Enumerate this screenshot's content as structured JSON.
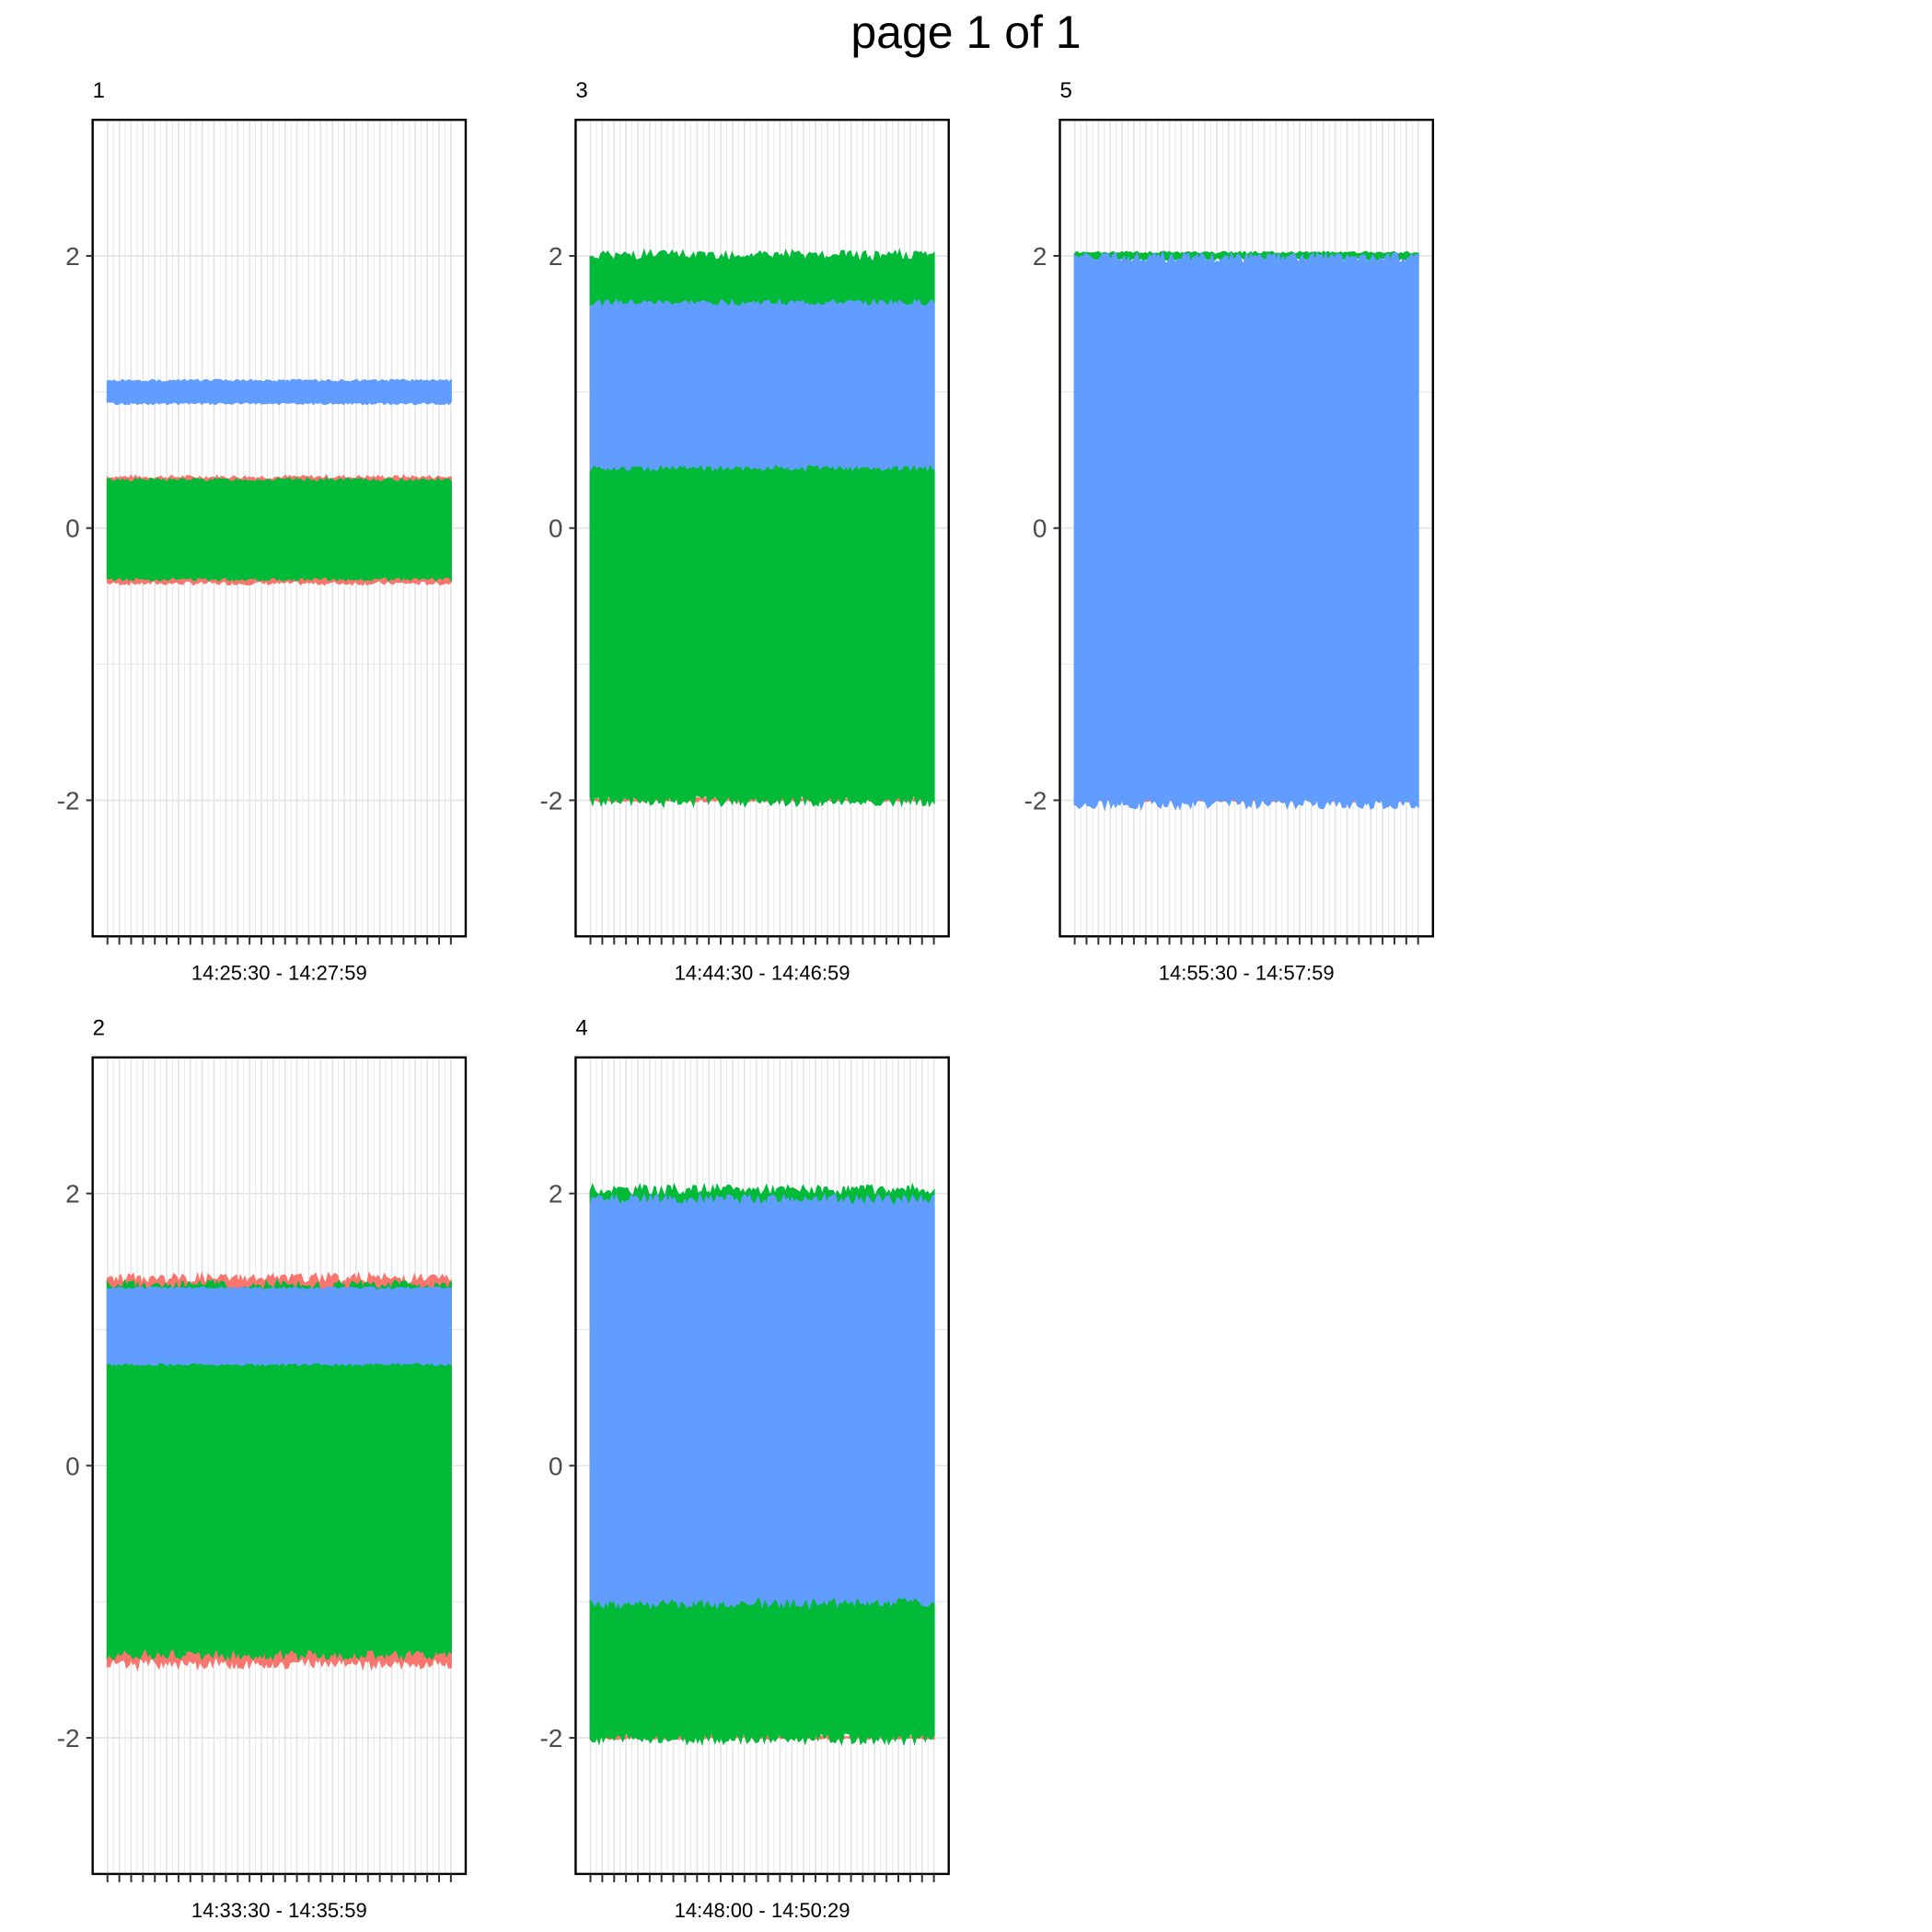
{
  "page": {
    "title": "page 1 of 1"
  },
  "colors": {
    "red": "#F8766D",
    "green": "#00BA38",
    "blue": "#619CFF",
    "grid": "#E4E4E4",
    "frame": "#000000"
  },
  "chart_data": [
    {
      "type": "line",
      "panel_label": "1",
      "xlabel": "14:25:30 - 14:27:59",
      "ylim": [
        -3.0,
        3.0
      ],
      "yticks": [
        -2,
        0,
        2
      ],
      "ytick_labels": [
        "-2",
        "0",
        "2"
      ],
      "x_ticks_count": 30,
      "series": [
        {
          "color": "red",
          "bands": [
            [
              0.37,
              -0.4
            ]
          ]
        },
        {
          "color": "green",
          "bands": [
            [
              0.35,
              -0.37
            ]
          ]
        },
        {
          "color": "blue",
          "bands": [
            [
              1.08,
              0.92
            ]
          ]
        }
      ]
    },
    {
      "type": "line",
      "panel_label": "3",
      "xlabel": "14:44:30 - 14:46:59",
      "ylim": [
        -3.0,
        3.0
      ],
      "yticks": [
        -2,
        0,
        2
      ],
      "ytick_labels": [
        "-2",
        "0",
        "2"
      ],
      "x_ticks_count": 30,
      "series": [
        {
          "color": "red",
          "bands": [
            [
              -1.99,
              -2.0
            ]
          ]
        },
        {
          "color": "green",
          "bands": [
            [
              2.0,
              -2.0
            ]
          ]
        },
        {
          "color": "blue",
          "bands": [
            [
              1.65,
              0.45
            ]
          ]
        }
      ]
    },
    {
      "type": "line",
      "panel_label": "5",
      "xlabel": "14:55:30 - 14:57:59",
      "ylim": [
        -3.0,
        3.0
      ],
      "yticks": [
        -2,
        0,
        2
      ],
      "ytick_labels": [
        "-2",
        "0",
        "2"
      ],
      "x_ticks_count": 30,
      "series": [
        {
          "color": "red",
          "bands": [
            [
              -1.99,
              -2.0
            ]
          ]
        },
        {
          "color": "green",
          "bands": [
            [
              2.02,
              1.98
            ]
          ]
        },
        {
          "color": "blue",
          "bands": [
            [
              1.98,
              -2.02
            ]
          ]
        }
      ]
    },
    {
      "type": "line",
      "panel_label": "2",
      "xlabel": "14:33:30 - 14:35:59",
      "ylim": [
        -3.0,
        3.0
      ],
      "yticks": [
        -2,
        0,
        2
      ],
      "ytick_labels": [
        "-2",
        "0",
        "2"
      ],
      "x_ticks_count": 30,
      "series": [
        {
          "color": "red",
          "bands": [
            [
              1.37,
              -1.45
            ]
          ]
        },
        {
          "color": "green",
          "bands": [
            [
              1.32,
              -1.38
            ]
          ]
        },
        {
          "color": "blue",
          "bands": [
            [
              1.3,
              0.75
            ]
          ]
        }
      ]
    },
    {
      "type": "line",
      "panel_label": "4",
      "xlabel": "14:48:00 - 14:50:29",
      "ylim": [
        -3.0,
        3.0
      ],
      "yticks": [
        -2,
        0,
        2
      ],
      "ytick_labels": [
        "-2",
        "0",
        "2"
      ],
      "x_ticks_count": 30,
      "series": [
        {
          "color": "red",
          "bands": [
            [
              -1.99,
              -2.0
            ]
          ]
        },
        {
          "color": "green",
          "bands": [
            [
              2.02,
              -2.0
            ]
          ]
        },
        {
          "color": "blue",
          "bands": [
            [
              1.95,
              -1.0
            ]
          ]
        }
      ]
    }
  ]
}
